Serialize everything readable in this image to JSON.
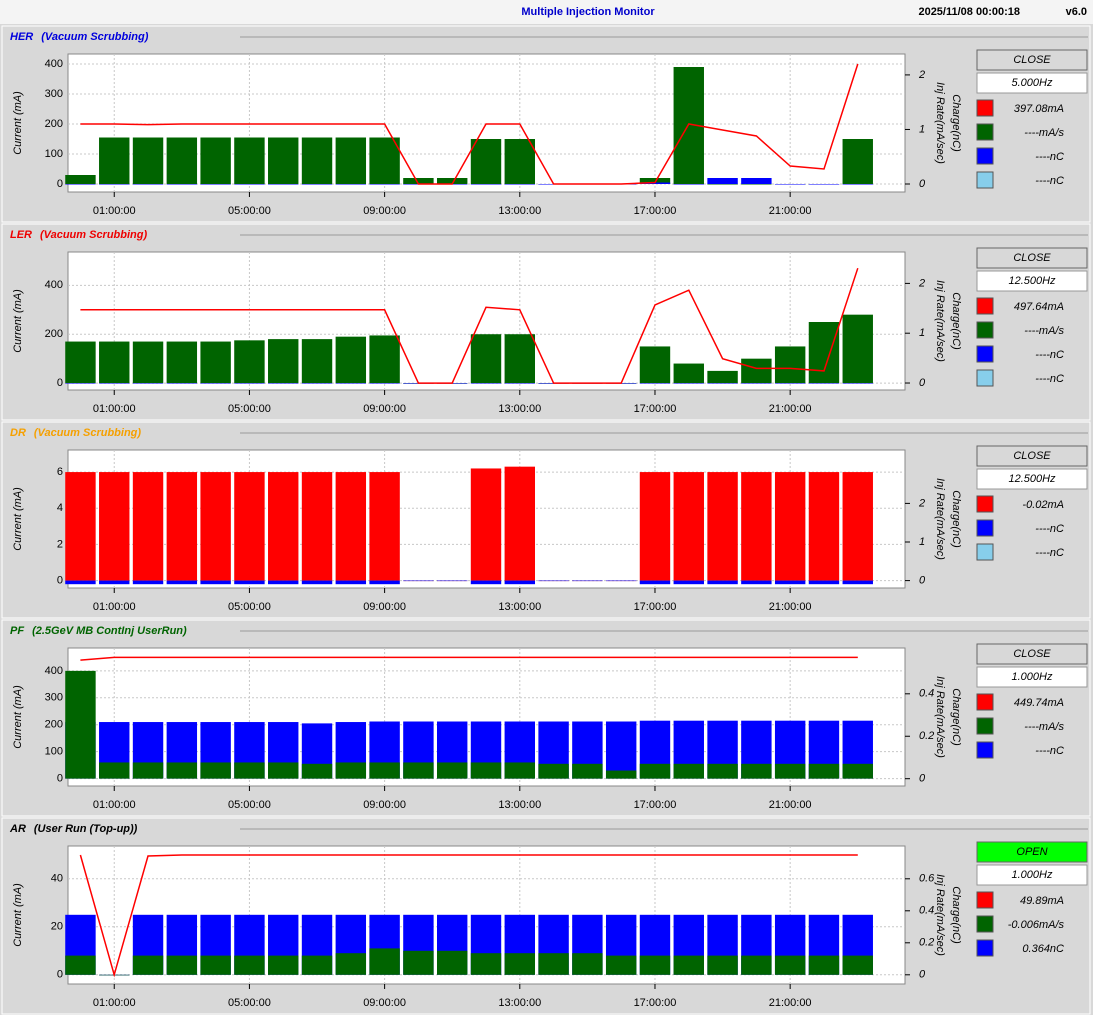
{
  "header": {
    "title": "Multiple Injection Monitor",
    "timestamp": "2025/11/08 00:00:18",
    "version": "v6.0"
  },
  "chart_data": [
    {
      "type": "line",
      "title": "HER",
      "subtitle": "(Vacuum Scrubbing)",
      "title_color": "#0000dd",
      "status": "CLOSE",
      "status_color": "#d8d8d8",
      "frequency": "5.000Hz",
      "readouts": [
        {
          "color": "#ff0000",
          "text": "397.08mA"
        },
        {
          "color": "#006400",
          "text": "----mA/s"
        },
        {
          "color": "#0000ff",
          "text": "----nC"
        },
        {
          "color": "#87ceeb",
          "text": "----nC"
        }
      ],
      "ylabel": "Current (mA)",
      "y2label": [
        "Charge(nC)",
        "Inj Rate(mA/sec)"
      ],
      "grid": true,
      "x": [
        0,
        1,
        2,
        3,
        4,
        5,
        6,
        7,
        8,
        9,
        10,
        11,
        12,
        13,
        14,
        15,
        16,
        17,
        18,
        19,
        20,
        21,
        22,
        23
      ],
      "xlim": [
        -0.25,
        24.25
      ],
      "xticks": [
        {
          "value": 1,
          "label": "01:00:00"
        },
        {
          "value": 5,
          "label": "05:00:00"
        },
        {
          "value": 9,
          "label": "09:00:00"
        },
        {
          "value": 13,
          "label": "13:00:00"
        },
        {
          "value": 17,
          "label": "17:00:00"
        },
        {
          "value": 21,
          "label": "21:00:00"
        }
      ],
      "ylim": [
        -20,
        420
      ],
      "yticks": [
        0,
        100,
        200,
        300,
        400
      ],
      "y2lim": [
        -0.11,
        2.31
      ],
      "y2ticks": [
        0,
        1,
        2
      ],
      "series": [
        {
          "kind": "bar",
          "color": "#006400",
          "values": [
            30,
            155,
            155,
            155,
            155,
            155,
            155,
            155,
            155,
            155,
            20,
            20,
            150,
            150,
            0,
            0,
            0,
            20,
            390,
            0,
            0,
            0,
            0,
            150
          ]
        },
        {
          "kind": "bar",
          "color": "#0000ff",
          "values": [
            0,
            0,
            0,
            0,
            0,
            0,
            0,
            0,
            0,
            0,
            0,
            0,
            0,
            0,
            0,
            0,
            0,
            5,
            0,
            20,
            20,
            0,
            0,
            0
          ]
        },
        {
          "kind": "line",
          "color": "#ff0000",
          "values": [
            200,
            200,
            198,
            200,
            200,
            200,
            200,
            200,
            200,
            200,
            0,
            0,
            200,
            200,
            0,
            0,
            0,
            5,
            200,
            180,
            160,
            60,
            50,
            400
          ]
        }
      ]
    },
    {
      "type": "line",
      "title": "LER",
      "subtitle": "(Vacuum Scrubbing)",
      "title_color": "#ee0000",
      "status": "CLOSE",
      "status_color": "#d8d8d8",
      "frequency": "12.500Hz",
      "readouts": [
        {
          "color": "#ff0000",
          "text": "497.64mA"
        },
        {
          "color": "#006400",
          "text": "----mA/s"
        },
        {
          "color": "#0000ff",
          "text": "----nC"
        },
        {
          "color": "#87ceeb",
          "text": "----nC"
        }
      ],
      "ylabel": "Current (mA)",
      "y2label": [
        "Charge(nC)",
        "Inj Rate(mA/sec)"
      ],
      "grid": true,
      "x": [
        0,
        1,
        2,
        3,
        4,
        5,
        6,
        7,
        8,
        9,
        10,
        11,
        12,
        13,
        14,
        15,
        16,
        17,
        18,
        19,
        20,
        21,
        22,
        23
      ],
      "xlim": [
        -0.25,
        24.25
      ],
      "xticks": [
        {
          "value": 1,
          "label": "01:00:00"
        },
        {
          "value": 5,
          "label": "05:00:00"
        },
        {
          "value": 9,
          "label": "09:00:00"
        },
        {
          "value": 13,
          "label": "13:00:00"
        },
        {
          "value": 17,
          "label": "17:00:00"
        },
        {
          "value": 21,
          "label": "21:00:00"
        }
      ],
      "ylim": [
        -20,
        520
      ],
      "yticks": [
        0,
        200,
        400
      ],
      "y2lim": [
        -0.1,
        2.55
      ],
      "y2ticks": [
        0,
        1,
        2
      ],
      "series": [
        {
          "kind": "bar",
          "color": "#006400",
          "values": [
            170,
            170,
            170,
            170,
            170,
            175,
            180,
            180,
            190,
            195,
            0,
            0,
            200,
            200,
            0,
            0,
            0,
            150,
            80,
            50,
            100,
            150,
            250,
            280
          ]
        },
        {
          "kind": "bar",
          "color": "#0000ff",
          "values": [
            0,
            0,
            0,
            0,
            0,
            0,
            0,
            0,
            0,
            0,
            0,
            0,
            0,
            0,
            0,
            0,
            0,
            0,
            0,
            0,
            0,
            0,
            0,
            0
          ]
        },
        {
          "kind": "line",
          "color": "#ff0000",
          "values": [
            300,
            300,
            300,
            300,
            300,
            300,
            300,
            300,
            300,
            300,
            0,
            0,
            310,
            300,
            0,
            0,
            0,
            320,
            380,
            100,
            60,
            60,
            50,
            470
          ]
        }
      ]
    },
    {
      "type": "line",
      "title": "DR",
      "subtitle": "(Vacuum Scrubbing)",
      "title_color": "#f5a000",
      "status": "CLOSE",
      "status_color": "#d8d8d8",
      "frequency": "12.500Hz",
      "readouts": [
        {
          "color": "#ff0000",
          "text": "-0.02mA"
        },
        {
          "color": "#0000ff",
          "text": "----nC"
        },
        {
          "color": "#87ceeb",
          "text": "----nC"
        }
      ],
      "ylabel": "Current (mA)",
      "y2label": [
        "Charge(nC)",
        "Inj Rate(mA/sec)"
      ],
      "grid": true,
      "x": [
        0,
        1,
        2,
        3,
        4,
        5,
        6,
        7,
        8,
        9,
        10,
        11,
        12,
        13,
        14,
        15,
        16,
        17,
        18,
        19,
        20,
        21,
        22,
        23
      ],
      "xlim": [
        -0.25,
        24.25
      ],
      "xticks": [
        {
          "value": 1,
          "label": "01:00:00"
        },
        {
          "value": 5,
          "label": "05:00:00"
        },
        {
          "value": 9,
          "label": "09:00:00"
        },
        {
          "value": 13,
          "label": "13:00:00"
        },
        {
          "value": 17,
          "label": "17:00:00"
        },
        {
          "value": 21,
          "label": "21:00:00"
        }
      ],
      "ylim": [
        -0.3,
        7
      ],
      "yticks": [
        0,
        2,
        4,
        6
      ],
      "y2lim": [
        -0.14,
        3.28
      ],
      "y2ticks": [
        0,
        1,
        2
      ],
      "series": [
        {
          "kind": "bar",
          "color": "#ff0000",
          "values": [
            6,
            6,
            6,
            6,
            6,
            6,
            6,
            6,
            6,
            6,
            0,
            0,
            6.2,
            6.3,
            0,
            0,
            0,
            6,
            6,
            6,
            6,
            6,
            6,
            6
          ]
        },
        {
          "kind": "bar",
          "color": "#0000ff",
          "values": [
            -0.2,
            -0.2,
            -0.2,
            -0.2,
            -0.2,
            -0.2,
            -0.2,
            -0.2,
            -0.2,
            -0.2,
            0,
            0,
            -0.2,
            -0.2,
            0,
            0,
            0,
            -0.2,
            -0.2,
            -0.2,
            -0.2,
            -0.2,
            -0.2,
            -0.2
          ]
        }
      ]
    },
    {
      "type": "line",
      "title": "PF",
      "subtitle": "(2.5GeV MB ContInj UserRun)",
      "title_color": "#006400",
      "status": "CLOSE",
      "status_color": "#d8d8d8",
      "frequency": "1.000Hz",
      "readouts": [
        {
          "color": "#ff0000",
          "text": "449.74mA"
        },
        {
          "color": "#006400",
          "text": "----mA/s"
        },
        {
          "color": "#0000ff",
          "text": "----nC"
        }
      ],
      "ylabel": "Current (mA)",
      "y2label": [
        "Charge(nC)",
        "Inj Rate(mA/sec)"
      ],
      "grid": true,
      "x": [
        0,
        1,
        2,
        3,
        4,
        5,
        6,
        7,
        8,
        9,
        10,
        11,
        12,
        13,
        14,
        15,
        16,
        17,
        18,
        19,
        20,
        21,
        22,
        23
      ],
      "xlim": [
        -0.25,
        24.25
      ],
      "xticks": [
        {
          "value": 1,
          "label": "01:00:00"
        },
        {
          "value": 5,
          "label": "05:00:00"
        },
        {
          "value": 9,
          "label": "09:00:00"
        },
        {
          "value": 13,
          "label": "13:00:00"
        },
        {
          "value": 17,
          "label": "17:00:00"
        },
        {
          "value": 21,
          "label": "21:00:00"
        }
      ],
      "ylim": [
        -20,
        470
      ],
      "yticks": [
        0,
        100,
        200,
        300,
        400
      ],
      "y2lim": [
        -0.025,
        0.597
      ],
      "y2ticks": [
        0,
        0.2,
        0.4
      ],
      "series": [
        {
          "kind": "bar",
          "color": "#0000ff",
          "values": [
            210,
            210,
            210,
            210,
            210,
            210,
            210,
            205,
            210,
            212,
            212,
            212,
            212,
            212,
            212,
            212,
            212,
            215,
            215,
            215,
            215,
            215,
            215,
            215
          ]
        },
        {
          "kind": "bar",
          "color": "#006400",
          "values": [
            400,
            60,
            60,
            60,
            60,
            60,
            60,
            55,
            60,
            60,
            60,
            60,
            60,
            60,
            55,
            55,
            30,
            55,
            55,
            55,
            55,
            55,
            55,
            55
          ]
        },
        {
          "kind": "line",
          "color": "#ff0000",
          "values": [
            440,
            450,
            450,
            450,
            450,
            450,
            450,
            450,
            450,
            450,
            450,
            450,
            450,
            450,
            450,
            450,
            450,
            450,
            450,
            450,
            450,
            450,
            450,
            450
          ]
        }
      ]
    },
    {
      "type": "line",
      "title": "AR",
      "subtitle": "(User Run (Top-up))",
      "title_color": "#000000",
      "status": "OPEN",
      "status_color": "#00ff00",
      "frequency": "1.000Hz",
      "readouts": [
        {
          "color": "#ff0000",
          "text": "49.89mA"
        },
        {
          "color": "#006400",
          "text": "-0.006mA/s"
        },
        {
          "color": "#0000ff",
          "text": "0.364nC"
        }
      ],
      "ylabel": "Current (mA)",
      "y2label": [
        "Charge(nC)",
        "Inj Rate(mA/sec)"
      ],
      "grid": true,
      "x": [
        0,
        1,
        2,
        3,
        4,
        5,
        6,
        7,
        8,
        9,
        10,
        11,
        12,
        13,
        14,
        15,
        16,
        17,
        18,
        19,
        20,
        21,
        22,
        23
      ],
      "xlim": [
        -0.25,
        24.25
      ],
      "xticks": [
        {
          "value": 1,
          "label": "01:00:00"
        },
        {
          "value": 5,
          "label": "05:00:00"
        },
        {
          "value": 9,
          "label": "09:00:00"
        },
        {
          "value": 13,
          "label": "13:00:00"
        },
        {
          "value": 17,
          "label": "17:00:00"
        },
        {
          "value": 21,
          "label": "21:00:00"
        }
      ],
      "ylim": [
        -3,
        52
      ],
      "yticks": [
        0,
        20,
        40
      ],
      "y2lim": [
        -0.045,
        0.78
      ],
      "y2ticks": [
        0,
        0.2,
        0.4,
        0.6
      ],
      "series": [
        {
          "kind": "bar",
          "color": "#0000ff",
          "values": [
            25,
            0,
            25,
            25,
            25,
            25,
            25,
            25,
            25,
            25,
            25,
            25,
            25,
            25,
            25,
            25,
            25,
            25,
            25,
            25,
            25,
            25,
            25,
            25
          ]
        },
        {
          "kind": "bar",
          "color": "#006400",
          "values": [
            8,
            0,
            8,
            8,
            8,
            8,
            8,
            8,
            9,
            11,
            10,
            10,
            9,
            9,
            9,
            9,
            8,
            8,
            8,
            8,
            8,
            8,
            8,
            8
          ]
        },
        {
          "kind": "line",
          "color": "#ff0000",
          "values": [
            49.9,
            0,
            49.5,
            49.9,
            49.9,
            49.9,
            49.9,
            49.9,
            49.9,
            49.9,
            49.9,
            49.9,
            49.9,
            49.9,
            49.9,
            49.9,
            49.9,
            49.9,
            49.9,
            49.9,
            49.9,
            49.9,
            49.9,
            49.9
          ]
        }
      ]
    }
  ]
}
